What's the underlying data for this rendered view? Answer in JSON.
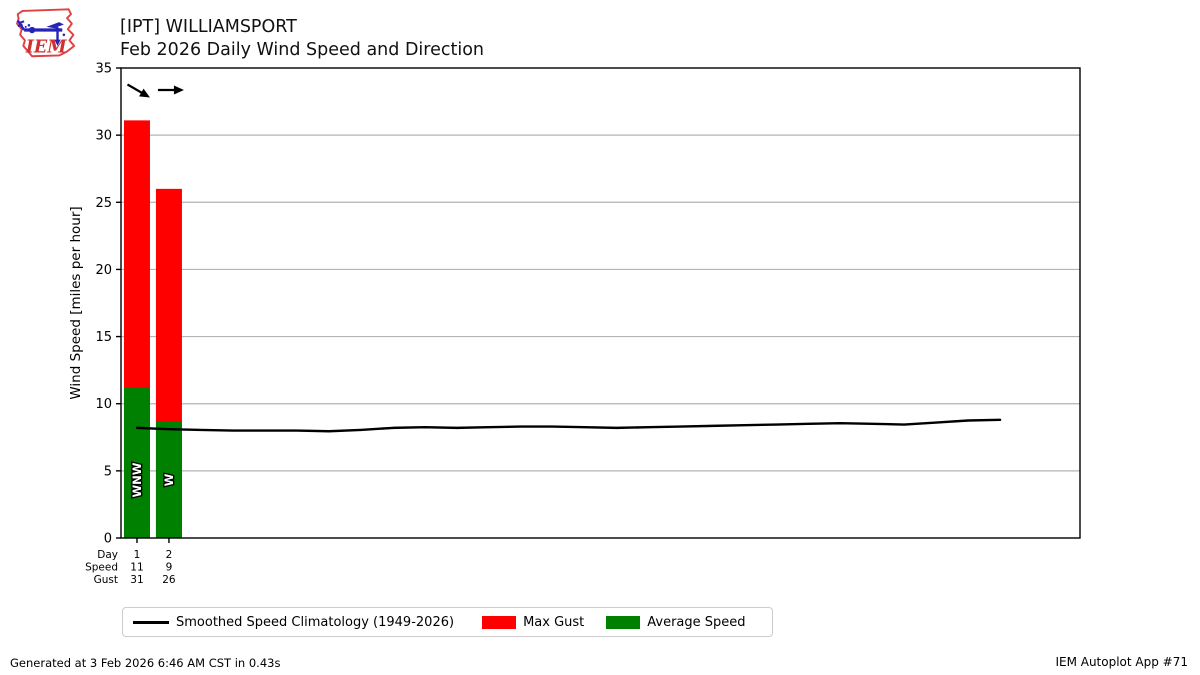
{
  "header": {
    "logo_text": "IEM",
    "title_line1": "[IPT] WILLIAMSPORT",
    "title_line2": "Feb 2026 Daily Wind Speed and Direction"
  },
  "chart_data": {
    "type": "bar",
    "title": "Feb 2026 Daily Wind Speed and Direction",
    "station": "[IPT] WILLIAMSPORT",
    "ylabel": "Wind Speed [miles per hour]",
    "ylim": [
      0,
      35
    ],
    "yticks": [
      0,
      5,
      10,
      15,
      20,
      25,
      30,
      35
    ],
    "xlim": [
      0.5,
      30.5
    ],
    "grid": "horizontal",
    "legend_position": "bottom",
    "colors": {
      "max_gust": "#ff0000",
      "avg_speed": "#008000",
      "climatology": "#000000",
      "grid": "#b3b3b3",
      "axis": "#000000"
    },
    "x_table": {
      "row_labels": [
        "Day",
        "Speed",
        "Gust"
      ]
    },
    "days": [
      {
        "day": 1,
        "speed": 11,
        "gust": 31,
        "avg_plot": 11.2,
        "gust_plot": 31.1,
        "direction": "WNW",
        "arrow_deg": 30
      },
      {
        "day": 2,
        "speed": 9,
        "gust": 26,
        "avg_plot": 8.7,
        "gust_plot": 26.0,
        "direction": "W",
        "arrow_deg": 0
      }
    ],
    "climatology": {
      "name": "Smoothed Speed Climatology (1949-2026)",
      "x": [
        1,
        2,
        3,
        4,
        5,
        6,
        7,
        8,
        9,
        10,
        11,
        12,
        13,
        14,
        15,
        16,
        17,
        18,
        19,
        20,
        21,
        22,
        23,
        24,
        25,
        26,
        27,
        28
      ],
      "values": [
        8.2,
        8.1,
        8.05,
        8.0,
        8.0,
        8.0,
        7.95,
        8.05,
        8.2,
        8.25,
        8.2,
        8.25,
        8.3,
        8.3,
        8.25,
        8.2,
        8.25,
        8.3,
        8.35,
        8.4,
        8.45,
        8.5,
        8.55,
        8.5,
        8.45,
        8.6,
        8.75,
        8.8
      ]
    }
  },
  "legend": {
    "items": [
      {
        "type": "line",
        "label": "Smoothed Speed Climatology (1949-2026)",
        "color": "#000000"
      },
      {
        "type": "patch",
        "label": "Max Gust",
        "color": "#ff0000"
      },
      {
        "type": "patch",
        "label": "Average Speed",
        "color": "#008000"
      }
    ]
  },
  "footer": {
    "generated": "Generated at 3 Feb 2026 6:46 AM CST in 0.43s",
    "app": "IEM Autoplot App #71"
  }
}
